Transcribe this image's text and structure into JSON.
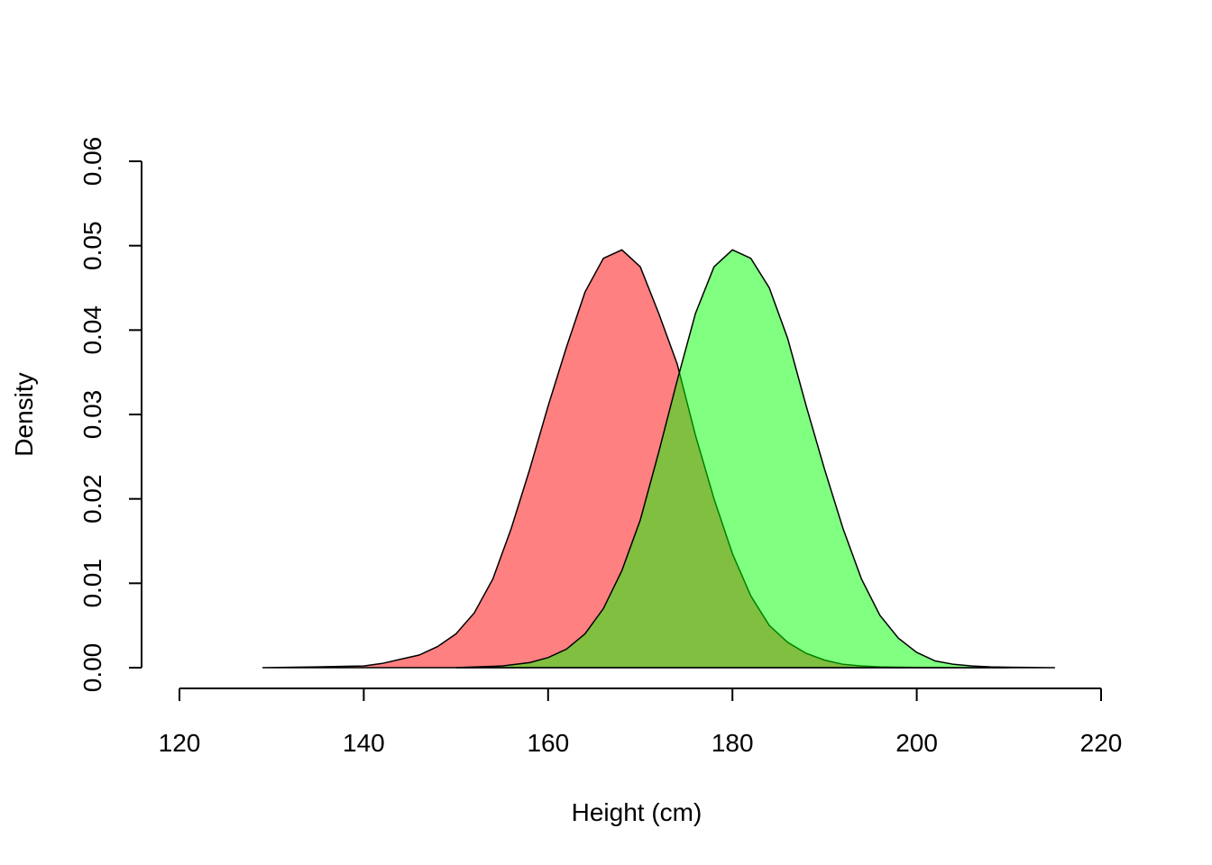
{
  "chart_data": {
    "type": "area",
    "title": "",
    "xlabel": "Height (cm)",
    "ylabel": "Density",
    "xlim": [
      120,
      220
    ],
    "ylim": [
      0,
      0.06
    ],
    "x_ticks": [
      "120",
      "140",
      "160",
      "180",
      "200",
      "220"
    ],
    "y_ticks": [
      "0.00",
      "0.01",
      "0.02",
      "0.03",
      "0.04",
      "0.05",
      "0.06"
    ],
    "grid": false,
    "legend": "none",
    "series": [
      {
        "color": "#FF00007F",
        "x": [
          129,
          135,
          140,
          142,
          144,
          146,
          148,
          150,
          152,
          154,
          156,
          158,
          160,
          162,
          164,
          166,
          168,
          170,
          172,
          174,
          176,
          178,
          180,
          182,
          184,
          186,
          188,
          190,
          192,
          194,
          196,
          198,
          200,
          205,
          210
        ],
        "y": [
          0,
          0.0001,
          0.0002,
          0.0005,
          0.001,
          0.0015,
          0.0025,
          0.004,
          0.0065,
          0.0105,
          0.0165,
          0.0235,
          0.031,
          0.038,
          0.0445,
          0.0485,
          0.0495,
          0.0475,
          0.042,
          0.036,
          0.0275,
          0.02,
          0.0135,
          0.0085,
          0.005,
          0.003,
          0.0017,
          0.0009,
          0.0004,
          0.0002,
          0.0001,
          5e-05,
          2e-05,
          0,
          0
        ]
      },
      {
        "color": "#00FF007F",
        "x": [
          150,
          155,
          158,
          160,
          162,
          164,
          166,
          168,
          170,
          172,
          174,
          176,
          178,
          180,
          182,
          184,
          186,
          188,
          190,
          192,
          194,
          196,
          198,
          200,
          202,
          204,
          206,
          208,
          210,
          215
        ],
        "y": [
          0,
          0.0002,
          0.0006,
          0.0012,
          0.0022,
          0.004,
          0.007,
          0.0115,
          0.0175,
          0.0255,
          0.034,
          0.042,
          0.0475,
          0.0495,
          0.0485,
          0.045,
          0.039,
          0.031,
          0.0235,
          0.0165,
          0.0105,
          0.0062,
          0.0035,
          0.0018,
          0.0008,
          0.0004,
          0.0002,
          0.0001,
          5e-05,
          0
        ]
      }
    ]
  }
}
